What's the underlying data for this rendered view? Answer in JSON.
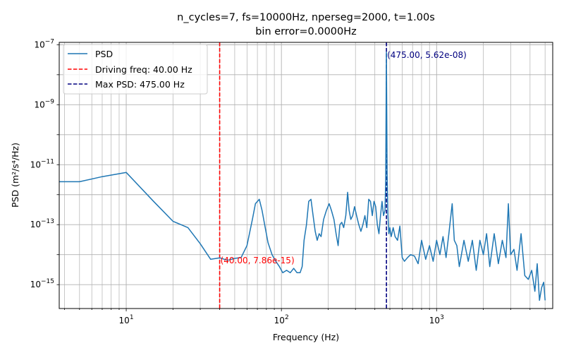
{
  "chart_data": {
    "type": "line",
    "title": [
      "n_cycles=7, fs=10000Hz, nperseg=2000, t=1.00s",
      "bin error=0.0000Hz"
    ],
    "xlabel": "Frequency (Hz)",
    "ylabel": "PSD (m²/s⁴/Hz)",
    "xscale": "log",
    "yscale": "log",
    "xlim": [
      3.7,
      5600
    ],
    "ylim": [
      1.6e-16,
      1.2e-07
    ],
    "grid": "both (major and minor)",
    "legend_location": "upper left",
    "x_ticks": [
      10,
      100,
      1000
    ],
    "y_ticks": [
      1e-15,
      1e-13,
      1e-11,
      1e-09,
      1e-07
    ],
    "series": [
      {
        "name": "PSD",
        "color": "#1f77b4",
        "points": [
          [
            3.7,
            2.7e-12
          ],
          [
            5,
            2.7e-12
          ],
          [
            7,
            4e-12
          ],
          [
            10,
            5.5e-12
          ],
          [
            15,
            6e-13
          ],
          [
            20,
            1.3e-13
          ],
          [
            25,
            8e-14
          ],
          [
            30,
            2.3e-14
          ],
          [
            35,
            7e-15
          ],
          [
            40,
            7.86e-15
          ],
          [
            45,
            6.5e-15
          ],
          [
            50,
            7.5e-15
          ],
          [
            55,
            8e-15
          ],
          [
            60,
            2e-14
          ],
          [
            65,
            1.5e-13
          ],
          [
            68,
            5e-13
          ],
          [
            72,
            7e-13
          ],
          [
            75,
            3e-13
          ],
          [
            78,
            1e-13
          ],
          [
            82,
            2.5e-14
          ],
          [
            87,
            1e-14
          ],
          [
            92,
            6e-15
          ],
          [
            97,
            4e-15
          ],
          [
            102,
            2.5e-15
          ],
          [
            108,
            3e-15
          ],
          [
            114,
            2.5e-15
          ],
          [
            120,
            3.5e-15
          ],
          [
            126,
            2.5e-15
          ],
          [
            132,
            2.5e-15
          ],
          [
            136,
            4e-15
          ],
          [
            140,
            3e-14
          ],
          [
            145,
            1e-13
          ],
          [
            150,
            6e-13
          ],
          [
            155,
            7e-13
          ],
          [
            160,
            2e-13
          ],
          [
            165,
            6e-14
          ],
          [
            170,
            3e-14
          ],
          [
            175,
            5e-14
          ],
          [
            180,
            4e-14
          ],
          [
            187,
            1.5e-13
          ],
          [
            195,
            3e-13
          ],
          [
            203,
            5e-13
          ],
          [
            210,
            3e-13
          ],
          [
            218,
            1.5e-13
          ],
          [
            225,
            5e-14
          ],
          [
            232,
            2e-14
          ],
          [
            238,
            1e-13
          ],
          [
            245,
            1.2e-13
          ],
          [
            252,
            8e-14
          ],
          [
            260,
            2e-13
          ],
          [
            267,
            1.2e-12
          ],
          [
            273,
            3e-13
          ],
          [
            280,
            1.5e-13
          ],
          [
            288,
            2e-13
          ],
          [
            296,
            4e-13
          ],
          [
            305,
            2e-13
          ],
          [
            315,
            1e-13
          ],
          [
            325,
            6e-14
          ],
          [
            335,
            1e-13
          ],
          [
            345,
            2e-13
          ],
          [
            355,
            8e-14
          ],
          [
            365,
            7e-13
          ],
          [
            375,
            6e-13
          ],
          [
            385,
            2e-13
          ],
          [
            395,
            6e-13
          ],
          [
            405,
            4e-13
          ],
          [
            415,
            1e-13
          ],
          [
            425,
            5e-14
          ],
          [
            435,
            2e-13
          ],
          [
            445,
            6e-13
          ],
          [
            455,
            2e-13
          ],
          [
            465,
            3e-13
          ],
          [
            470,
            3e-12
          ],
          [
            475,
            5.62e-08
          ],
          [
            480,
            5e-12
          ],
          [
            486,
            2e-13
          ],
          [
            492,
            5e-14
          ],
          [
            500,
            8e-14
          ],
          [
            510,
            4e-14
          ],
          [
            525,
            8e-14
          ],
          [
            540,
            4e-14
          ],
          [
            560,
            3e-14
          ],
          [
            580,
            9e-14
          ],
          [
            600,
            8e-15
          ],
          [
            620,
            6e-15
          ],
          [
            650,
            8e-15
          ],
          [
            680,
            1e-14
          ],
          [
            720,
            9e-15
          ],
          [
            760,
            5e-15
          ],
          [
            800,
            3e-14
          ],
          [
            850,
            7e-15
          ],
          [
            900,
            2e-14
          ],
          [
            950,
            6e-15
          ],
          [
            1000,
            3e-14
          ],
          [
            1050,
            1e-14
          ],
          [
            1100,
            4e-14
          ],
          [
            1150,
            8e-15
          ],
          [
            1200,
            5e-14
          ],
          [
            1260,
            5e-13
          ],
          [
            1300,
            3e-14
          ],
          [
            1350,
            2e-14
          ],
          [
            1400,
            4e-15
          ],
          [
            1500,
            3e-14
          ],
          [
            1600,
            6e-15
          ],
          [
            1700,
            3e-14
          ],
          [
            1800,
            3e-15
          ],
          [
            1900,
            3e-14
          ],
          [
            2000,
            1e-14
          ],
          [
            2100,
            5e-14
          ],
          [
            2200,
            4e-15
          ],
          [
            2350,
            5e-14
          ],
          [
            2500,
            5e-15
          ],
          [
            2650,
            3e-14
          ],
          [
            2800,
            8e-15
          ],
          [
            2900,
            5e-13
          ],
          [
            3000,
            1e-14
          ],
          [
            3150,
            1.5e-14
          ],
          [
            3300,
            3e-15
          ],
          [
            3500,
            5e-14
          ],
          [
            3700,
            2e-15
          ],
          [
            3900,
            1.5e-15
          ],
          [
            4100,
            3e-15
          ],
          [
            4300,
            6e-16
          ],
          [
            4450,
            5e-15
          ],
          [
            4600,
            3e-16
          ],
          [
            4750,
            8e-16
          ],
          [
            4900,
            1.2e-15
          ],
          [
            5000,
            3e-16
          ]
        ]
      }
    ],
    "vlines": [
      {
        "label": "Driving freq: 40.00 Hz",
        "x": 40,
        "color": "#ff0000",
        "style": "dashed"
      },
      {
        "label": "Max PSD: 475.00 Hz",
        "x": 475,
        "color": "#000080",
        "style": "dashed"
      }
    ],
    "annotations": [
      {
        "text": "(40.00, 7.86e-15)",
        "x": 40,
        "y": 7.86e-15,
        "color": "#ff0000"
      },
      {
        "text": "(475.00, 5.62e-08)",
        "x": 475,
        "y": 5.62e-08,
        "color": "#000080"
      }
    ],
    "legend": [
      {
        "label": "PSD",
        "color": "#1f77b4",
        "style": "solid"
      },
      {
        "label": "Driving freq: 40.00 Hz",
        "color": "#ff0000",
        "style": "dashed"
      },
      {
        "label": "Max PSD: 475.00 Hz",
        "color": "#000080",
        "style": "dashed"
      }
    ]
  }
}
